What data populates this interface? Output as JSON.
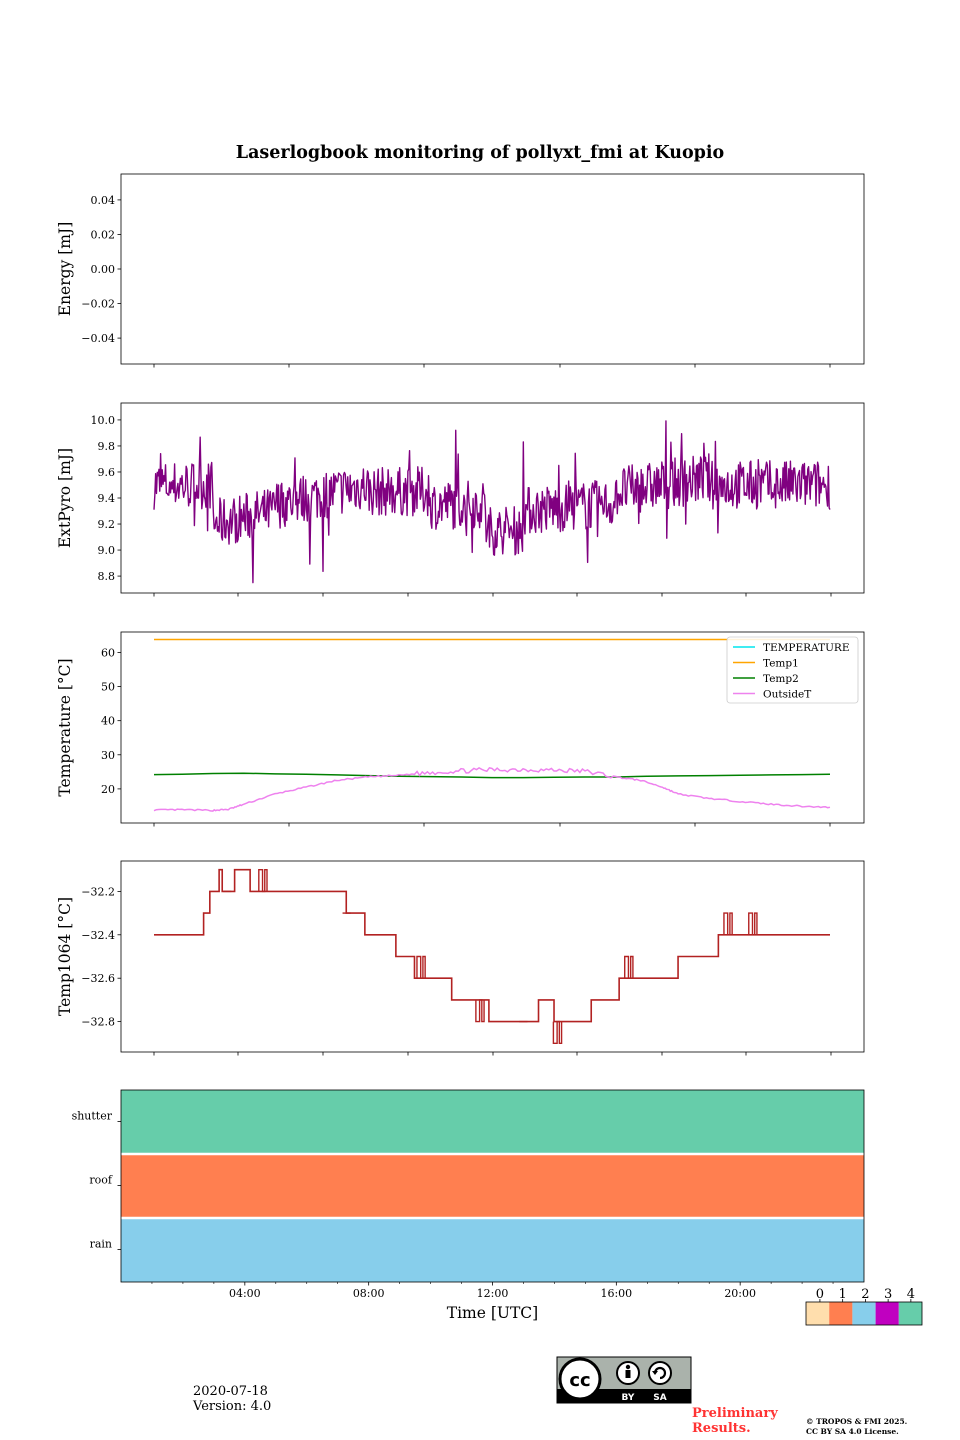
{
  "figure": {
    "title": "Laserlogbook monitoring of pollyxt_fmi at Kuopio",
    "date": "2020-07-18",
    "version": "Version: 4.0",
    "preliminary": "Preliminary\nResults.",
    "copyright_line1": "© TROPOS & FMI 2025.",
    "copyright_line2": "CC BY SA 4.0 License.",
    "license_badge": {
      "by": "BY",
      "sa": "SA",
      "cc": "cc"
    }
  },
  "colors": {
    "extpyro": "#800080",
    "temperature": "#00e5ee",
    "temp1": "#ffa500",
    "temp2": "#008000",
    "outside": "#ee82ee",
    "temp1064": "#b22222",
    "status0": "#ffdead",
    "status1": "#ff7f50",
    "status2": "#87ceeb",
    "status3": "#c000c0",
    "status4": "#66cdaa",
    "prelim": "#ff3333"
  },
  "chart_data": [
    {
      "id": "energy",
      "type": "line",
      "ylabel": "Energy [mJ]",
      "ylim": [
        -0.055,
        0.055
      ],
      "yticks": [
        0.04,
        0.02,
        0.0,
        -0.02,
        -0.04
      ],
      "ytick_labels": [
        "0.04",
        "0.02",
        "0.00",
        "−0.02",
        "−0.04"
      ],
      "series": []
    },
    {
      "id": "extpyro",
      "type": "line",
      "ylabel": "ExtPyro [mJ]",
      "ylim": [
        8.67,
        10.13
      ],
      "yticks": [
        10.0,
        9.8,
        9.6,
        9.4,
        9.2,
        9.0,
        8.8
      ],
      "ytick_labels": [
        "10.0",
        "9.8",
        "9.6",
        "9.4",
        "9.2",
        "9.0",
        "8.8"
      ],
      "x_range_hours": [
        1.1,
        22.9
      ],
      "mean": 9.45,
      "min": 8.74,
      "max": 10.06,
      "series": [
        {
          "name": "ExtPyro",
          "color_key": "extpyro"
        }
      ]
    },
    {
      "id": "temperature",
      "type": "line",
      "ylabel": "Temperature [°C]",
      "ylim": [
        10,
        66
      ],
      "yticks": [
        60,
        50,
        40,
        30,
        20
      ],
      "ytick_labels": [
        "60",
        "50",
        "40",
        "30",
        "20"
      ],
      "legend": "top-right",
      "series": [
        {
          "name": "TEMPERATURE",
          "color_key": "temperature",
          "x": [],
          "y": []
        },
        {
          "name": "Temp1",
          "color_key": "temp1",
          "x": [
            1.1,
            22.9
          ],
          "y": [
            63.8,
            63.8
          ]
        },
        {
          "name": "Temp2",
          "color_key": "temp2",
          "x": [
            1.1,
            2,
            3,
            4,
            5,
            6,
            7,
            8,
            9,
            10,
            11,
            12,
            13,
            14,
            15,
            16,
            17,
            18,
            19,
            20,
            21,
            22,
            22.9
          ],
          "y": [
            24.2,
            24.3,
            24.5,
            24.6,
            24.4,
            24.3,
            24.1,
            23.9,
            23.7,
            23.6,
            23.5,
            23.3,
            23.3,
            23.4,
            23.5,
            23.5,
            23.7,
            23.8,
            23.9,
            24.0,
            24.1,
            24.2,
            24.3
          ]
        },
        {
          "name": "OutsideT",
          "color_key": "outside",
          "x": [
            1.1,
            2,
            3,
            3.5,
            4,
            5,
            6,
            7,
            8,
            9,
            10,
            11,
            12,
            13,
            14,
            15,
            16,
            16.8,
            17.5,
            18,
            19,
            20,
            21,
            22,
            22.9
          ],
          "y": [
            13.8,
            13.9,
            13.7,
            14.0,
            15.5,
            18.5,
            20.5,
            22.5,
            23.5,
            24.0,
            24.8,
            25.3,
            25.6,
            25.7,
            25.5,
            25.2,
            23.5,
            22.5,
            20.5,
            18.5,
            17.2,
            16.3,
            15.5,
            14.9,
            14.6
          ]
        }
      ]
    },
    {
      "id": "temp1064",
      "type": "line",
      "ylabel": "Temp1064 [°C]",
      "ylim": [
        -32.94,
        -32.06
      ],
      "yticks": [
        -32.2,
        -32.4,
        -32.6,
        -32.8
      ],
      "ytick_labels": [
        "−32.2",
        "−32.4",
        "−32.6",
        "−32.8"
      ],
      "series": [
        {
          "name": "Temp1064",
          "color_key": "temp1064",
          "x": [
            1.1,
            2.7,
            2.7,
            2.9,
            2.9,
            3.2,
            3.2,
            3.3,
            3.3,
            3.7,
            3.7,
            4.2,
            4.2,
            4.9,
            4.9,
            7.3,
            7.3,
            7.9,
            7.9,
            8.9,
            8.9,
            9.5,
            9.5,
            10.7,
            10.7,
            11.9,
            11.9,
            13.5,
            13.5,
            14.0,
            14.0,
            15.2,
            15.2,
            16.1,
            16.1,
            18.0,
            18.0,
            19.3,
            19.3,
            22.9
          ],
          "y": [
            -32.4,
            -32.4,
            -32.3,
            -32.3,
            -32.2,
            -32.2,
            -32.1,
            -32.1,
            -32.2,
            -32.2,
            -32.1,
            -32.1,
            -32.2,
            -32.2,
            -32.2,
            -32.2,
            -32.3,
            -32.3,
            -32.4,
            -32.4,
            -32.5,
            -32.5,
            -32.6,
            -32.6,
            -32.7,
            -32.7,
            -32.8,
            -32.8,
            -32.7,
            -32.7,
            -32.8,
            -32.8,
            -32.7,
            -32.7,
            -32.6,
            -32.6,
            -32.5,
            -32.5,
            -32.4,
            -32.4
          ],
          "spikes": [
            {
              "x": 3.45,
              "y": -32.2
            },
            {
              "x": 4.6,
              "y": -32.1
            },
            {
              "x": 7.3,
              "y": -32.3
            },
            {
              "x": 9.7,
              "y": -32.5
            },
            {
              "x": 11.6,
              "y": -32.8
            },
            {
              "x": 13.0,
              "y": -32.8
            },
            {
              "x": 14.1,
              "y": -32.9
            },
            {
              "x": 16.4,
              "y": -32.5
            },
            {
              "x": 19.6,
              "y": -32.3
            },
            {
              "x": 20.4,
              "y": -32.3
            },
            {
              "x": 21.9,
              "y": -32.4
            },
            {
              "x": 22.3,
              "y": -32.4
            }
          ]
        }
      ]
    },
    {
      "id": "status",
      "type": "heatmap",
      "xlabel": "Time [UTC]",
      "xlim": [
        0,
        24
      ],
      "xticks": [
        4,
        8,
        12,
        16,
        20
      ],
      "xtick_labels": [
        "04:00",
        "08:00",
        "12:00",
        "16:00",
        "20:00"
      ],
      "rows": [
        {
          "label": "shutter",
          "value": 4
        },
        {
          "label": "roof",
          "value": 1
        },
        {
          "label": "rain",
          "value": 2
        }
      ],
      "colorbar": {
        "ticks": [
          "0",
          "1",
          "2",
          "3",
          "4"
        ]
      }
    }
  ]
}
